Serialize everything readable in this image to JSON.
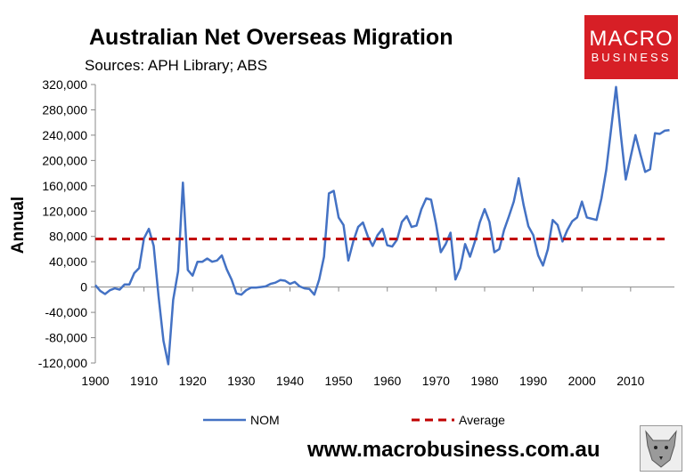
{
  "chart_data": {
    "type": "line",
    "title": "Australian Net Overseas Migration",
    "subtitle": "Sources: APH Library; ABS",
    "ylabel": "Annual",
    "xlim": [
      1900,
      2019
    ],
    "ylim": [
      -120000,
      320000
    ],
    "yticks": [
      "320,000",
      "280,000",
      "240,000",
      "200,000",
      "160,000",
      "120,000",
      "80,000",
      "40,000",
      "0",
      "-40,000",
      "-80,000",
      "-120,000"
    ],
    "xticks": [
      "1900",
      "1910",
      "1920",
      "1930",
      "1940",
      "1950",
      "1960",
      "1970",
      "1980",
      "1990",
      "2000",
      "2010"
    ],
    "legend_position": "bottom",
    "series": [
      {
        "name": "NOM",
        "color": "#4472c4",
        "style": "solid",
        "x": [
          1900,
          1901,
          1902,
          1903,
          1904,
          1905,
          1906,
          1907,
          1908,
          1909,
          1910,
          1911,
          1912,
          1913,
          1914,
          1915,
          1916,
          1917,
          1918,
          1919,
          1920,
          1921,
          1922,
          1923,
          1924,
          1925,
          1926,
          1927,
          1928,
          1929,
          1930,
          1931,
          1932,
          1933,
          1934,
          1935,
          1936,
          1937,
          1938,
          1939,
          1940,
          1941,
          1942,
          1943,
          1944,
          1945,
          1946,
          1947,
          1948,
          1949,
          1950,
          1951,
          1952,
          1953,
          1954,
          1955,
          1956,
          1957,
          1958,
          1959,
          1960,
          1961,
          1962,
          1963,
          1964,
          1965,
          1966,
          1967,
          1968,
          1969,
          1970,
          1971,
          1972,
          1973,
          1974,
          1975,
          1976,
          1977,
          1978,
          1979,
          1980,
          1981,
          1982,
          1983,
          1984,
          1985,
          1986,
          1987,
          1988,
          1989,
          1990,
          1991,
          1992,
          1993,
          1994,
          1995,
          1996,
          1997,
          1998,
          1999,
          2000,
          2001,
          2002,
          2003,
          2004,
          2005,
          2006,
          2007,
          2008,
          2009,
          2010,
          2011,
          2012,
          2013,
          2014,
          2015,
          2016,
          2017,
          2018
        ],
        "values": [
          3000,
          -6000,
          -11000,
          -5000,
          -2000,
          -4000,
          4000,
          4000,
          22000,
          30000,
          77000,
          92000,
          65000,
          -15000,
          -85000,
          -122000,
          -20000,
          25000,
          165000,
          27000,
          18000,
          40000,
          40000,
          45000,
          40000,
          42000,
          50000,
          28000,
          12000,
          -10000,
          -12000,
          -5000,
          -1000,
          -1000,
          0,
          1000,
          5000,
          7000,
          11000,
          10000,
          5000,
          8000,
          1000,
          -2000,
          -3000,
          -12000,
          12000,
          48000,
          148000,
          152000,
          110000,
          98000,
          42000,
          72000,
          95000,
          102000,
          80000,
          65000,
          82000,
          92000,
          66000,
          64000,
          75000,
          103000,
          112000,
          95000,
          97000,
          123000,
          140000,
          138000,
          100000,
          55000,
          68000,
          86000,
          12000,
          30000,
          68000,
          48000,
          72000,
          102000,
          123000,
          103000,
          55000,
          60000,
          90000,
          112000,
          135000,
          172000,
          130000,
          96000,
          82000,
          50000,
          34000,
          60000,
          106000,
          98000,
          72000,
          90000,
          104000,
          110000,
          135000,
          110000,
          108000,
          106000,
          140000,
          185000,
          250000,
          316000,
          240000,
          170000,
          205000,
          240000,
          210000,
          182000,
          186000,
          243000,
          242000,
          247000,
          248000
        ]
      },
      {
        "name": "Average",
        "color": "#c00000",
        "style": "dashed",
        "x": [
          1900,
          2018
        ],
        "values": [
          76000,
          76000
        ]
      }
    ]
  },
  "logo": {
    "line1": "MACRO",
    "line2": "BUSINESS"
  },
  "website": "www.macrobusiness.com.au"
}
